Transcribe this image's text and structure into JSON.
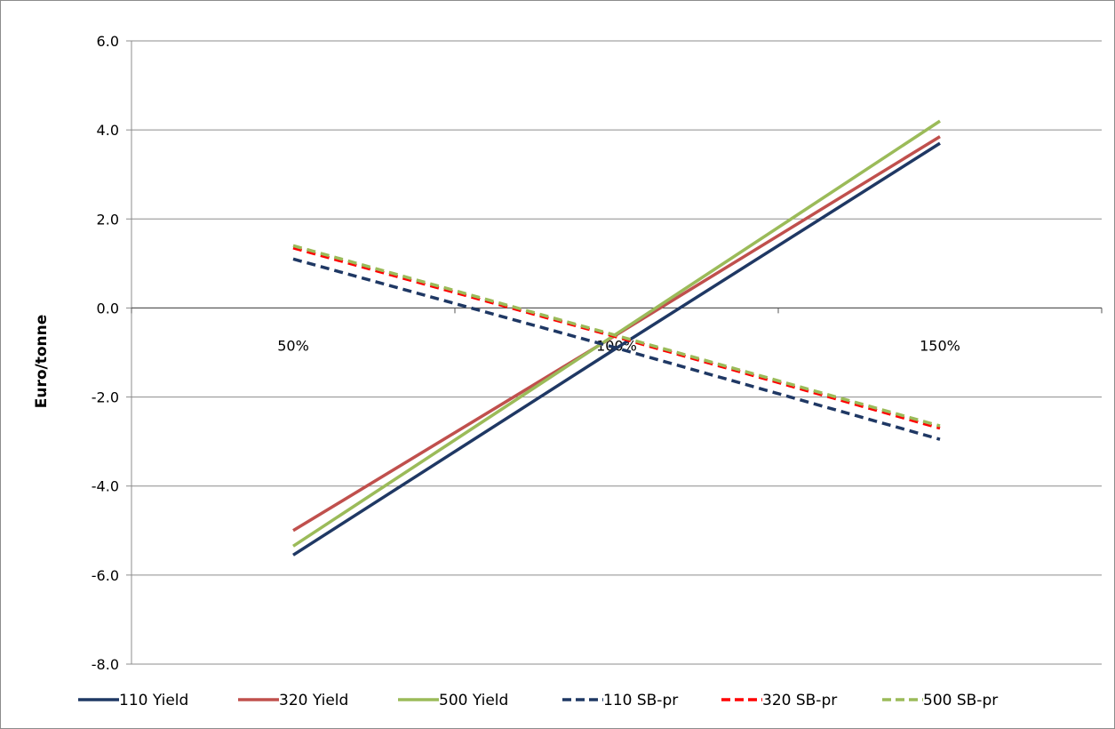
{
  "chart_data": {
    "type": "line",
    "title": "",
    "xlabel": "",
    "ylabel": "Euro/tonne",
    "categories": [
      "50%",
      "100%",
      "150%"
    ],
    "ylim": [
      -8.0,
      6.0
    ],
    "yticks": [
      "6.0",
      "4.0",
      "2.0",
      "0.0",
      "-2.0",
      "-4.0",
      "-6.0",
      "-8.0"
    ],
    "grid": true,
    "legend_position": "bottom",
    "series": [
      {
        "name": "110 Yield",
        "values": [
          -5.55,
          -0.9,
          3.7
        ],
        "color": "#1f3864",
        "dash": "solid"
      },
      {
        "name": "320 Yield",
        "values": [
          -5.0,
          -0.6,
          3.85
        ],
        "color": "#c0504d",
        "dash": "solid"
      },
      {
        "name": "500 Yield",
        "values": [
          -5.35,
          -0.58,
          4.2
        ],
        "color": "#9bbb59",
        "dash": "solid"
      },
      {
        "name": "110 SB-pr",
        "values": [
          1.1,
          -0.9,
          -2.95
        ],
        "color": "#1f3864",
        "dash": "dashed"
      },
      {
        "name": "320 SB-pr",
        "values": [
          1.35,
          -0.65,
          -2.7
        ],
        "color": "#ff0000",
        "dash": "dashed"
      },
      {
        "name": "500 SB-pr",
        "values": [
          1.4,
          -0.62,
          -2.65
        ],
        "color": "#9bbb59",
        "dash": "dashed"
      }
    ]
  }
}
